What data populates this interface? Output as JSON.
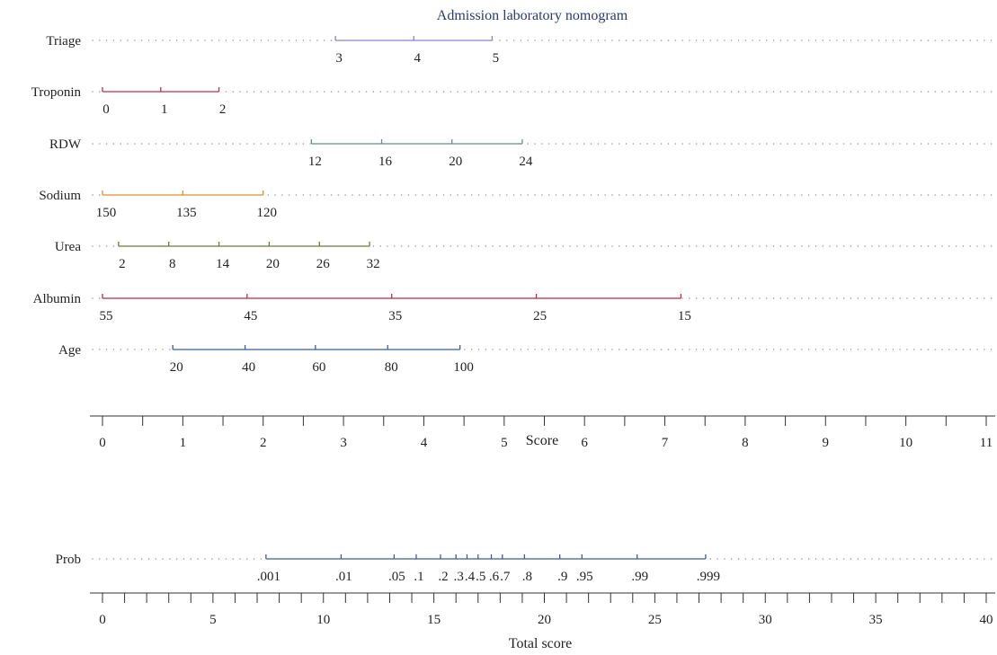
{
  "chart_data": {
    "type": "nomogram",
    "title": "Admission laboratory nomogram",
    "score_axis": {
      "label": "Score",
      "range": [
        0,
        11
      ],
      "ticks": [
        "0",
        "1",
        "2",
        "3",
        "4",
        "5",
        "6",
        "7",
        "8",
        "9",
        "10",
        "11"
      ],
      "minor_step": 0.5
    },
    "variables": [
      {
        "name": "Triage",
        "color": "#8a82c8",
        "points": [
          [
            3,
            2.9
          ],
          [
            4,
            3.875
          ],
          [
            5,
            4.85
          ]
        ],
        "labels": [
          "3",
          "4",
          "5"
        ]
      },
      {
        "name": "Troponin",
        "color": "#b5344f",
        "points": [
          [
            0,
            0
          ],
          [
            1,
            0.725
          ],
          [
            2,
            1.45
          ]
        ],
        "labels": [
          "0",
          "1",
          "2"
        ]
      },
      {
        "name": "RDW",
        "color": "#6b8c88",
        "points": [
          [
            12,
            2.6
          ],
          [
            16,
            3.475
          ],
          [
            20,
            4.35
          ],
          [
            24,
            5.225
          ]
        ],
        "labels": [
          "12",
          "16",
          "20",
          "24"
        ]
      },
      {
        "name": "Sodium",
        "color": "#e08e2a",
        "points": [
          [
            150,
            0
          ],
          [
            135,
            1
          ],
          [
            120,
            2
          ]
        ],
        "labels": [
          "150",
          "135",
          "120"
        ]
      },
      {
        "name": "Urea",
        "color": "#6b7a3a",
        "points": [
          [
            2,
            0.2
          ],
          [
            8,
            0.825
          ],
          [
            14,
            1.45
          ],
          [
            20,
            2.075
          ],
          [
            26,
            2.7
          ],
          [
            32,
            3.325
          ]
        ],
        "labels": [
          "2",
          "8",
          "14",
          "20",
          "26",
          "32"
        ]
      },
      {
        "name": "Albumin",
        "color": "#b52f42",
        "points": [
          [
            55,
            0
          ],
          [
            45,
            1.8
          ],
          [
            35,
            3.6
          ],
          [
            25,
            5.4
          ],
          [
            15,
            7.2
          ]
        ],
        "labels": [
          "55",
          "45",
          "35",
          "25",
          "15"
        ]
      },
      {
        "name": "Age",
        "color": "#3a5f8e",
        "points": [
          [
            20,
            0.875
          ],
          [
            40,
            1.775
          ],
          [
            60,
            2.65
          ],
          [
            80,
            3.55
          ],
          [
            100,
            4.45
          ]
        ],
        "labels": [
          "20",
          "40",
          "60",
          "80",
          "100"
        ]
      }
    ],
    "total_axis": {
      "label": "Total score",
      "range": [
        0,
        40
      ],
      "ticks": [
        "0",
        "5",
        "10",
        "15",
        "20",
        "25",
        "30",
        "35",
        "40"
      ],
      "minor_step": 1
    },
    "prob": {
      "name": "Prob",
      "color": "#3a5f8e",
      "points": [
        [
          0.001,
          7.4
        ],
        [
          0.01,
          10.8
        ],
        [
          0.05,
          13.2
        ],
        [
          0.1,
          14.2
        ],
        [
          0.2,
          15.3
        ],
        [
          0.3,
          16.0
        ],
        [
          0.4,
          16.5
        ],
        [
          0.5,
          17.0
        ],
        [
          0.6,
          17.6
        ],
        [
          0.7,
          18.1
        ],
        [
          0.8,
          19.1
        ],
        [
          0.9,
          20.7
        ],
        [
          0.95,
          21.7
        ],
        [
          0.99,
          24.2
        ],
        [
          0.999,
          27.3
        ]
      ],
      "labels": [
        ".001",
        ".01",
        ".05",
        ".1",
        ".2",
        ".3",
        ".4",
        ".5",
        ".6",
        ".7",
        ".8",
        ".9",
        ".95",
        ".99",
        ".999"
      ]
    }
  }
}
